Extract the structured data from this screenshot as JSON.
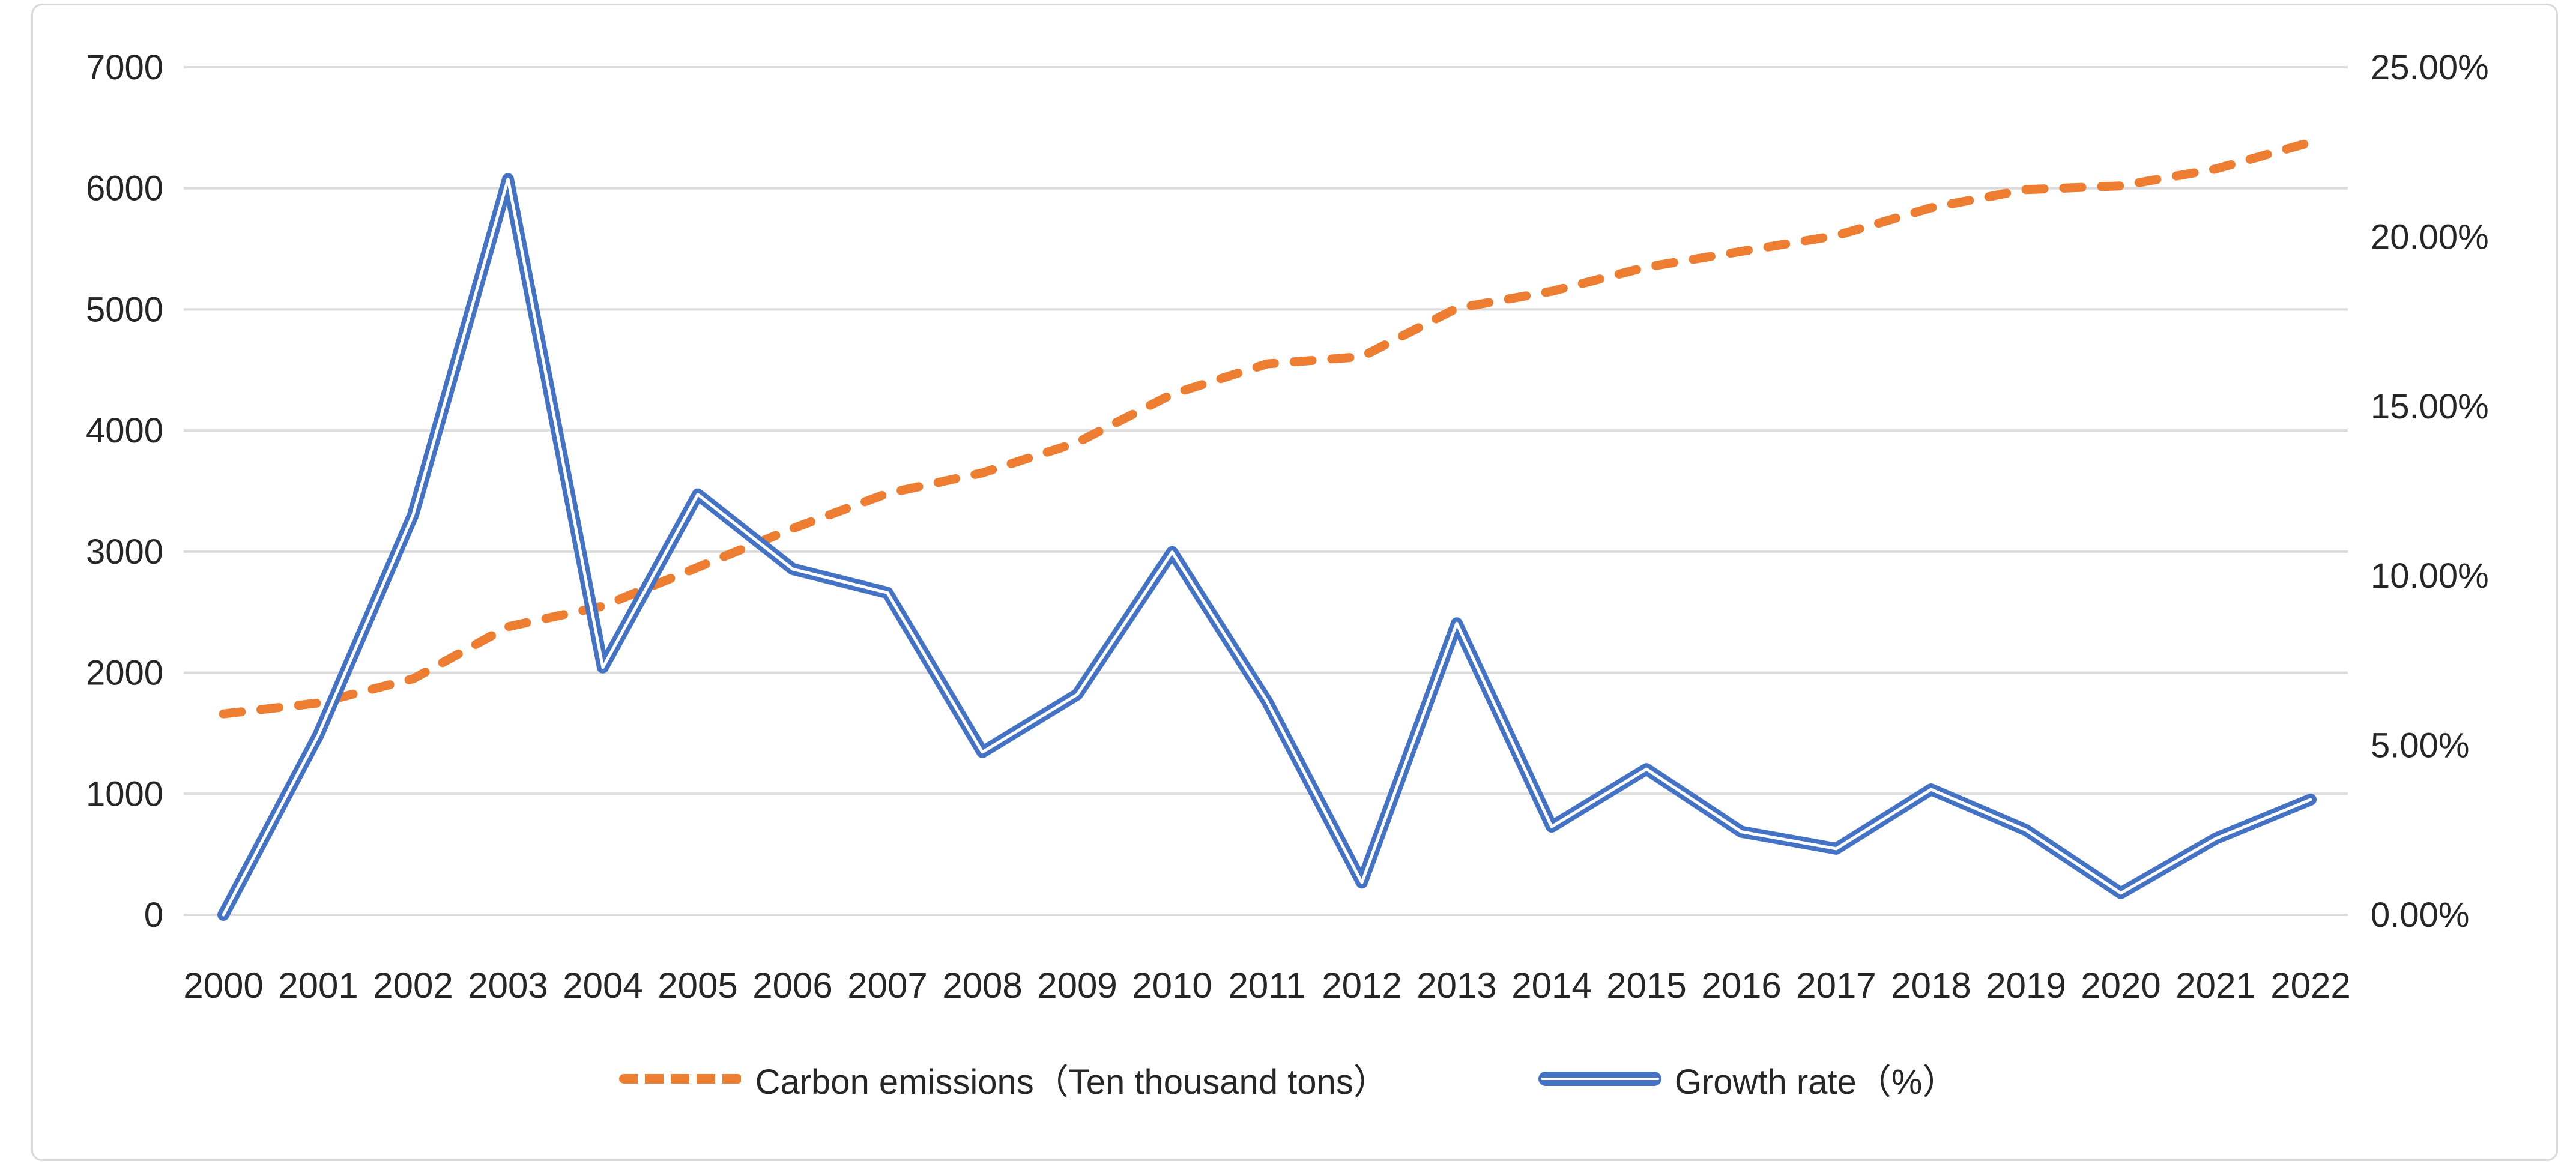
{
  "chart": {
    "background": "#FFFFFF",
    "border_color": "#D9D9D9",
    "grid_color": "#DCDCDC",
    "text_color": "#262626"
  },
  "left_axis": {
    "ticks": [
      "0",
      "1000",
      "2000",
      "3000",
      "4000",
      "5000",
      "6000",
      "7000"
    ],
    "min": 0,
    "max": 7000
  },
  "right_axis": {
    "ticks": [
      "0.00%",
      "5.00%",
      "10.00%",
      "15.00%",
      "20.00%",
      "25.00%"
    ],
    "min": 0,
    "max": 25
  },
  "x_axis": {
    "labels": [
      "2000",
      "2001",
      "2002",
      "2003",
      "2004",
      "2005",
      "2006",
      "2007",
      "2008",
      "2009",
      "2010",
      "2011",
      "2012",
      "2013",
      "2014",
      "2015",
      "2016",
      "2017",
      "2018",
      "2019",
      "2020",
      "2021",
      "2022"
    ]
  },
  "legend": {
    "items": [
      {
        "label": "Carbon emissions（Ten thousand tons）",
        "color": "#ED7D31",
        "style": "dashed"
      },
      {
        "label": "Growth rate（%）",
        "color": "#4472C4",
        "style": "solid"
      }
    ]
  },
  "chart_data": {
    "type": "line",
    "x": [
      2000,
      2001,
      2002,
      2003,
      2004,
      2005,
      2006,
      2007,
      2008,
      2009,
      2010,
      2011,
      2012,
      2013,
      2014,
      2015,
      2016,
      2017,
      2018,
      2019,
      2020,
      2021,
      2022
    ],
    "series": [
      {
        "name": "Carbon emissions（Ten thousand tons）",
        "axis": "left",
        "color": "#ED7D31",
        "line_style": "dashed",
        "values": [
          1660,
          1750,
          1950,
          2380,
          2550,
          2870,
          3190,
          3480,
          3650,
          3900,
          4300,
          4550,
          4610,
          5010,
          5150,
          5350,
          5480,
          5610,
          5840,
          5990,
          6020,
          6160,
          6380
        ]
      },
      {
        "name": "Growth rate（%）",
        "axis": "right",
        "color": "#4472C4",
        "line_style": "solid",
        "values": [
          0.0,
          5.3,
          11.8,
          21.7,
          7.3,
          12.4,
          10.2,
          9.5,
          4.8,
          6.5,
          10.7,
          6.3,
          0.95,
          8.6,
          2.6,
          4.3,
          2.45,
          1.95,
          3.7,
          2.5,
          0.64,
          2.25,
          3.4
        ]
      }
    ],
    "left_ylim": [
      0,
      7000
    ],
    "right_ylim": [
      0,
      25
    ],
    "grid": true,
    "legend_position": "bottom",
    "title": "",
    "xlabel": "",
    "ylabel_left": "Ten thousand tons",
    "ylabel_right": "%"
  }
}
